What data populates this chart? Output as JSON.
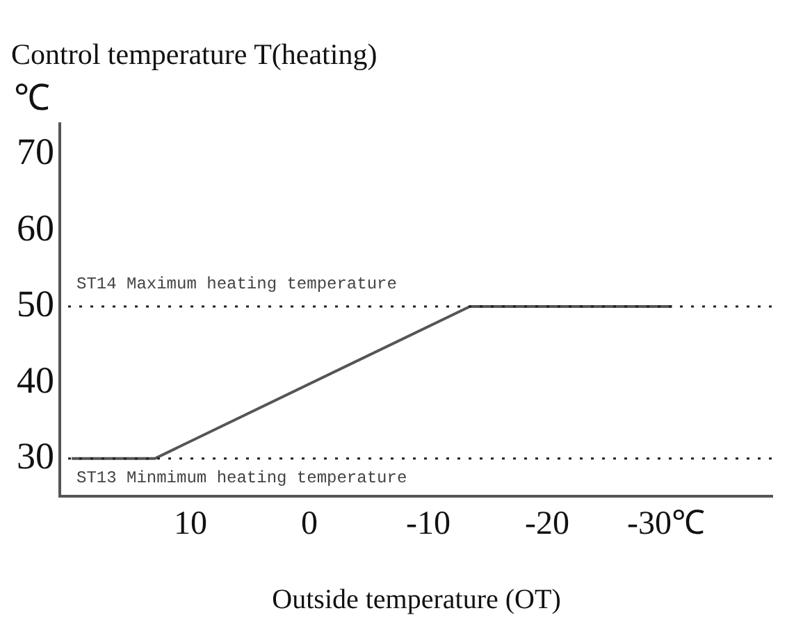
{
  "chart_data": {
    "type": "line",
    "title": "Control temperature T(heating)",
    "xlabel": "Outside temperature (OT)",
    "ylabel": "℃",
    "x": [
      20,
      13,
      -13.5,
      -30.5
    ],
    "series": [
      {
        "color": "#555555",
        "values": [
          30,
          30,
          50,
          50
        ]
      }
    ],
    "xlim": [
      21,
      -39
    ],
    "xticks": [
      10,
      0,
      -10,
      -20,
      {
        "value": -30,
        "label": "-30℃"
      }
    ],
    "ylim": [
      25,
      74
    ],
    "yticks": [
      30,
      40,
      50,
      60,
      70
    ],
    "ref_lines": [
      {
        "axis": "y",
        "value": 50,
        "label": "ST14 Maximum heating temperature",
        "color": "#222222",
        "line_style": "dotted"
      },
      {
        "axis": "y",
        "value": 30,
        "label": "ST13 Minmimum heating temperature",
        "color": "#222222",
        "line_style": "dotted"
      }
    ],
    "legend": false,
    "marker": "none",
    "line_style": "solid"
  }
}
